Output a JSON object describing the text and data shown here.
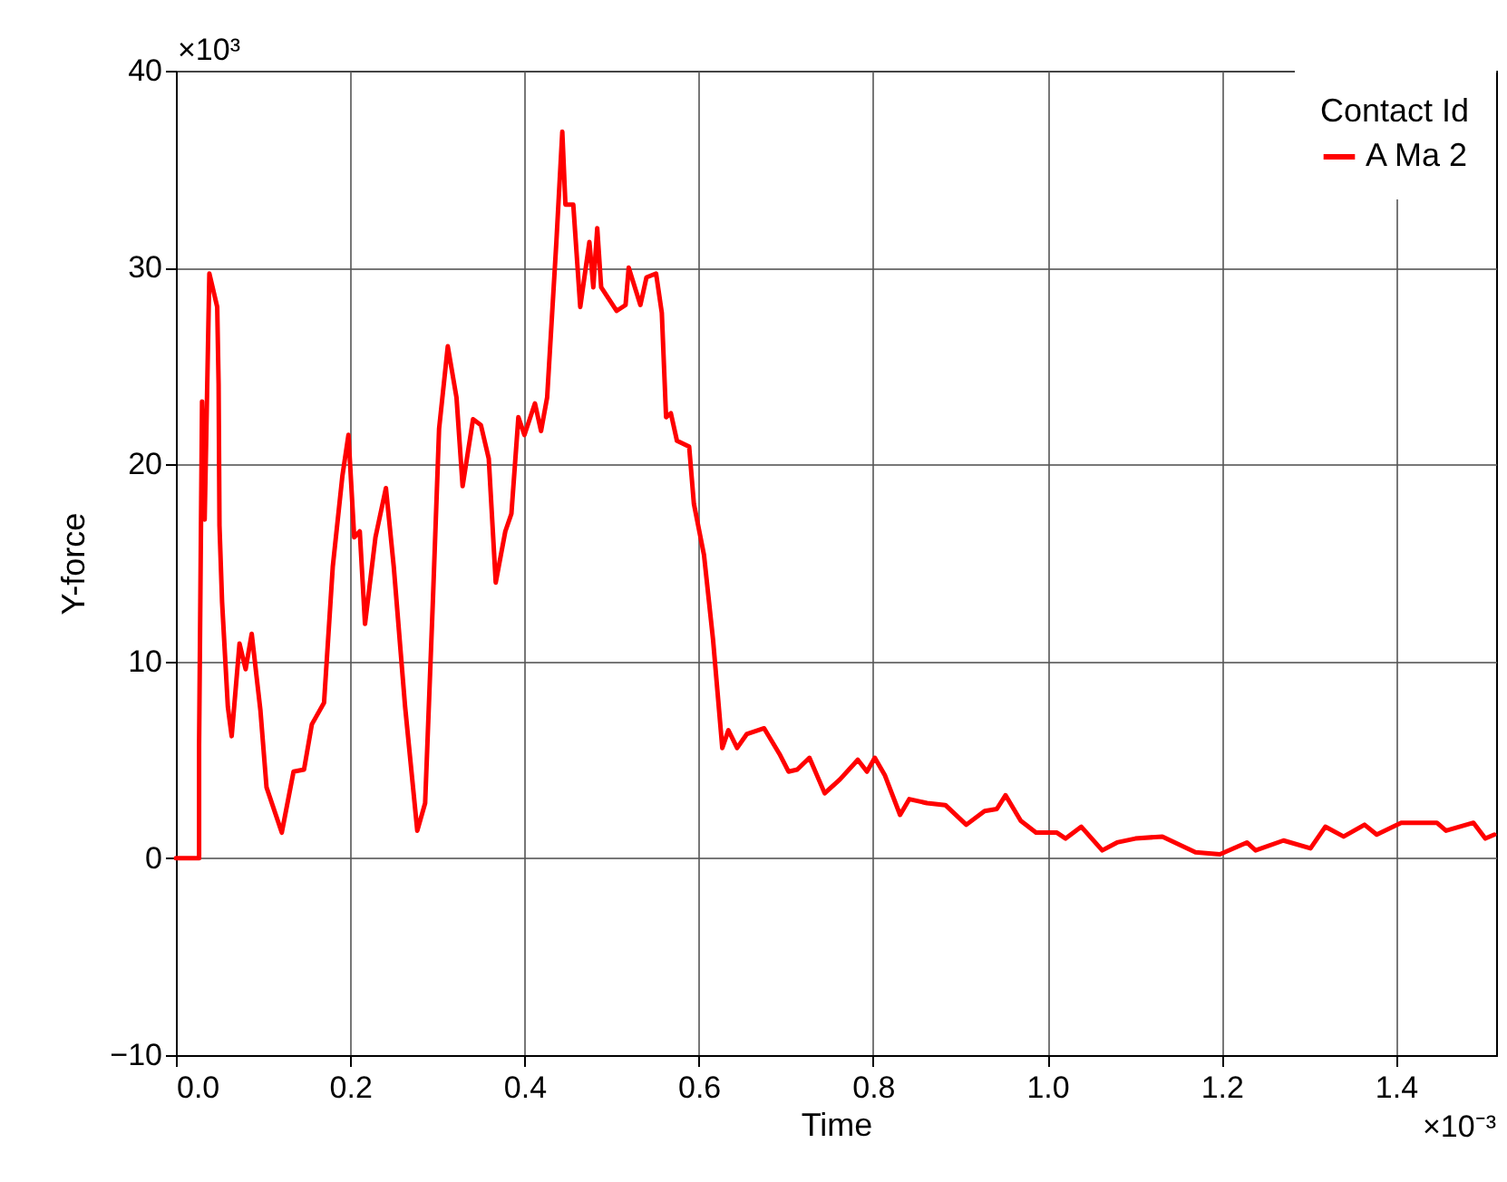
{
  "chart_data": {
    "type": "line",
    "xlabel": "Time",
    "ylabel": "Y-force",
    "legend_title": "Contact Id",
    "x": [
      0,
      0.0266,
      0.0266,
      0.03,
      0.033,
      0.0384,
      0.0474,
      0.049,
      0.05,
      0.053,
      0.0596,
      0.064,
      0.073,
      0.08,
      0.087,
      0.097,
      0.104,
      0.1215,
      0.135,
      0.147,
      0.156,
      0.17,
      0.18,
      0.191,
      0.198,
      0.2046,
      0.211,
      0.217,
      0.229,
      0.241,
      0.25,
      0.263,
      0.277,
      0.286,
      0.295,
      0.302,
      0.312,
      0.322,
      0.329,
      0.341,
      0.35,
      0.359,
      0.367,
      0.378,
      0.385,
      0.393,
      0.4,
      0.412,
      0.419,
      0.426,
      0.4366,
      0.4434,
      0.447,
      0.456,
      0.464,
      0.4745,
      0.479,
      0.4835,
      0.488,
      0.5057,
      0.516,
      0.5196,
      0.533,
      0.54,
      0.551,
      0.5576,
      0.5625,
      0.568,
      0.575,
      0.589,
      0.5944,
      0.606,
      0.6164,
      0.627,
      0.634,
      0.644,
      0.655,
      0.675,
      0.6926,
      0.703,
      0.713,
      0.727,
      0.7445,
      0.762,
      0.7825,
      0.793,
      0.802,
      0.8137,
      0.831,
      0.8415,
      0.862,
      0.883,
      0.907,
      0.928,
      0.942,
      0.952,
      0.9695,
      0.987,
      1.011,
      1.021,
      1.039,
      1.063,
      1.08,
      1.101,
      1.132,
      1.17,
      1.198,
      1.229,
      1.239,
      1.271,
      1.302,
      1.319,
      1.34,
      1.364,
      1.378,
      1.406,
      1.447,
      1.4575,
      1.489,
      1.5026,
      1.513
    ],
    "series": [
      {
        "name": "A Ma 2",
        "color": "#ff0000",
        "values": [
          0,
          0,
          5.7,
          23.2,
          17.2,
          29.7,
          28.0,
          24.1,
          16.9,
          13.0,
          7.7,
          6.2,
          10.9,
          9.6,
          11.4,
          7.5,
          3.6,
          1.3,
          4.4,
          4.5,
          6.8,
          7.9,
          14.8,
          19.4,
          21.5,
          16.3,
          16.6,
          11.9,
          16.3,
          18.8,
          14.8,
          7.7,
          1.4,
          2.8,
          13.2,
          21.8,
          26.0,
          23.4,
          18.9,
          22.3,
          22.0,
          20.3,
          14.0,
          16.6,
          17.5,
          22.4,
          21.5,
          23.1,
          21.7,
          23.4,
          31.3,
          36.9,
          33.2,
          33.2,
          28.0,
          31.3,
          29.0,
          32.0,
          29.0,
          27.8,
          28.1,
          30.0,
          28.1,
          29.5,
          29.7,
          27.7,
          22.4,
          22.6,
          21.2,
          20.9,
          18.0,
          15.4,
          11.1,
          5.6,
          6.5,
          5.6,
          6.3,
          6.6,
          5.3,
          4.4,
          4.5,
          5.1,
          3.3,
          4.0,
          5.0,
          4.4,
          5.1,
          4.2,
          2.2,
          3.0,
          2.8,
          2.7,
          1.7,
          2.4,
          2.5,
          3.2,
          1.9,
          1.3,
          1.3,
          1.0,
          1.6,
          0.4,
          0.8,
          1.0,
          1.1,
          0.3,
          0.2,
          0.8,
          0.4,
          0.9,
          0.5,
          1.6,
          1.1,
          1.7,
          1.2,
          1.8,
          1.8,
          1.4,
          1.8,
          1.0,
          1.2
        ]
      }
    ],
    "xlim": [
      0,
      1.515
    ],
    "ylim": [
      -10,
      40
    ],
    "xticks": [
      {
        "value": 0,
        "label": "0.0"
      },
      {
        "value": 0.2,
        "label": "0.2"
      },
      {
        "value": 0.4,
        "label": "0.4"
      },
      {
        "value": 0.6,
        "label": "0.6"
      },
      {
        "value": 0.8,
        "label": "0.8"
      },
      {
        "value": 1.0,
        "label": "1.0"
      },
      {
        "value": 1.2,
        "label": "1.2"
      },
      1.4
    ],
    "yticks": [
      {
        "value": -10,
        "label": "−10"
      },
      0,
      10,
      20,
      30,
      40
    ],
    "annotations": [
      "×10⁻³",
      "×10³"
    ],
    "grid": true,
    "legend": "top right",
    "line_style": "solid",
    "marker": "none"
  }
}
